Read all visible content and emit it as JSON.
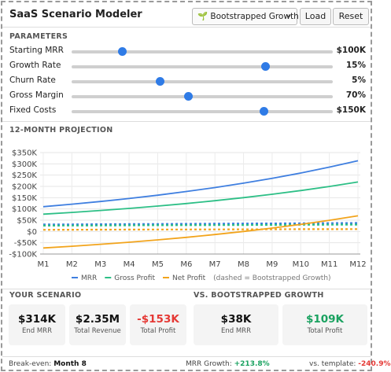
{
  "header": {
    "title": "SaaS Scenario Modeler",
    "scenario_select": "🌱 Bootstrapped Growth",
    "buttons": [
      "Load",
      "Reset"
    ]
  },
  "parameters": {
    "title": "PARAMETERS",
    "rows": [
      {
        "label": "Starting MRR",
        "value": "$100K"
      },
      {
        "label": "Growth Rate",
        "value": "15%"
      },
      {
        "label": "Churn Rate",
        "value": "5%"
      },
      {
        "label": "Gross Margin",
        "value": "70%"
      },
      {
        "label": "Fixed Costs",
        "value": "$150K"
      }
    ]
  },
  "chart_data": {
    "type": "line",
    "title": "12-MONTH PROJECTION",
    "categories": [
      "M1",
      "M2",
      "M3",
      "M4",
      "M5",
      "M6",
      "M7",
      "M8",
      "M9",
      "M10",
      "M11",
      "M12"
    ],
    "series": [
      {
        "name": "MRR",
        "color": "#3f7fe0",
        "values": [
          110000,
          121000,
          133100,
          146410,
          161051,
          177156,
          194872,
          214359,
          235795,
          259374,
          285312,
          313843
        ]
      },
      {
        "name": "Gross Profit",
        "color": "#2dbf86",
        "values": [
          77000,
          84700,
          93170,
          102487,
          112736,
          124009,
          136410,
          150051,
          165057,
          181562,
          199718,
          219690
        ]
      },
      {
        "name": "Net Profit",
        "color": "#f2a41c",
        "values": [
          -73000,
          -65300,
          -56830,
          -47513,
          -37264,
          -25991,
          -13590,
          51,
          15057,
          31562,
          49718,
          69690
        ]
      }
    ],
    "template_series": [
      {
        "color": "#3f7fe0",
        "values": [
          31000,
          31600,
          32200,
          32800,
          33400,
          34000,
          34600,
          35200,
          35800,
          36400,
          37100,
          37800
        ]
      },
      {
        "color": "#2dbf86",
        "values": [
          26000,
          26400,
          26800,
          27200,
          27600,
          28000,
          28400,
          28800,
          29200,
          29600,
          30000,
          30400
        ]
      },
      {
        "color": "#f2a41c",
        "values": [
          7500,
          7800,
          8100,
          8400,
          8700,
          9000,
          9200,
          9500,
          9800,
          10100,
          10400,
          10700
        ]
      }
    ],
    "template_note": "(dashed = Bootstrapped Growth)",
    "ylim": [
      -100000,
      350000
    ],
    "yticks": [
      {
        "value": -100000,
        "label": "-$100K"
      },
      {
        "value": -50000,
        "label": "-$50K"
      },
      {
        "value": 0,
        "label": "$0"
      },
      {
        "value": 50000,
        "label": "$50K"
      },
      {
        "value": 100000,
        "label": "$100K"
      },
      {
        "value": 150000,
        "label": "$150K"
      },
      {
        "value": 200000,
        "label": "$200K"
      },
      {
        "value": 250000,
        "label": "$250K"
      },
      {
        "value": 300000,
        "label": "$300K"
      },
      {
        "value": 350000,
        "label": "$350K"
      }
    ],
    "grid": true
  },
  "your_scenario": {
    "title": "YOUR SCENARIO",
    "cards": [
      {
        "value": "$314K",
        "label": "End MRR",
        "color": "#111111"
      },
      {
        "value": "$2.35M",
        "label": "Total Revenue",
        "color": "#111111"
      },
      {
        "value": "-$153K",
        "label": "Total Profit",
        "color": "#e53935"
      }
    ]
  },
  "comparison": {
    "title": "VS. BOOTSTRAPPED GROWTH",
    "cards": [
      {
        "value": "$38K",
        "label": "End MRR",
        "color": "#111111"
      },
      {
        "value": "$109K",
        "label": "Total Profit",
        "color": "#1aa260"
      }
    ]
  },
  "footer": [
    {
      "label": "Break-even:",
      "value": "Month 8",
      "color": "#111111"
    },
    {
      "label": "MRR Growth:",
      "value": "+213.8%",
      "color": "#1aa260"
    },
    {
      "label": "vs. template:",
      "value": "-240.9%",
      "color": "#e53935"
    }
  ]
}
